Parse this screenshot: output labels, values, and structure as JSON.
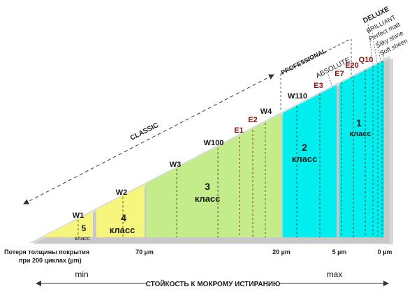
{
  "segments": {
    "class5_line1": "5",
    "class5_line2": "класс",
    "class4_line1": "4",
    "class4_line2": "класс",
    "class3_line1": "3",
    "class3_line2": "класс",
    "class2_line1": "2",
    "class2_line2": "класс",
    "class1_line1": "1",
    "class1_line2": "класс"
  },
  "markers": {
    "w1": "W1",
    "w2": "W2",
    "w3": "W3",
    "w100": "W100",
    "e1": "E1",
    "e2": "E2",
    "w4": "W4",
    "w110": "W110",
    "e3": "E3",
    "e7": "E7",
    "e20": "E20",
    "q10": "Q10"
  },
  "groups": {
    "classic": "CLASSIC",
    "professional": "PROFESSIONAL",
    "absolute": "ABSOLUTE",
    "deluxe": "DELUXE",
    "deluxe_items": [
      "BRILLIANT",
      "Perfect matt",
      "Silky shine",
      "Soft sheen"
    ]
  },
  "scale": {
    "label_line1": "Потеря толщины покрытия",
    "label_line2": "при  200 циклах (µm)",
    "v70": "70 µm",
    "v20": "20 µm",
    "v5": "5 µm",
    "v0": "0 µm"
  },
  "axis": {
    "min": "min",
    "max": "max",
    "title": "СТОЙКОСТЬ К МОКРОМУ ИСТИРАНИЮ"
  },
  "colors": {
    "yellow": "#f6f57e",
    "green": "#c5ec8a",
    "cyan": "#00eeee",
    "grey": "#d8d8d8",
    "red_marker": "#8b1010"
  }
}
